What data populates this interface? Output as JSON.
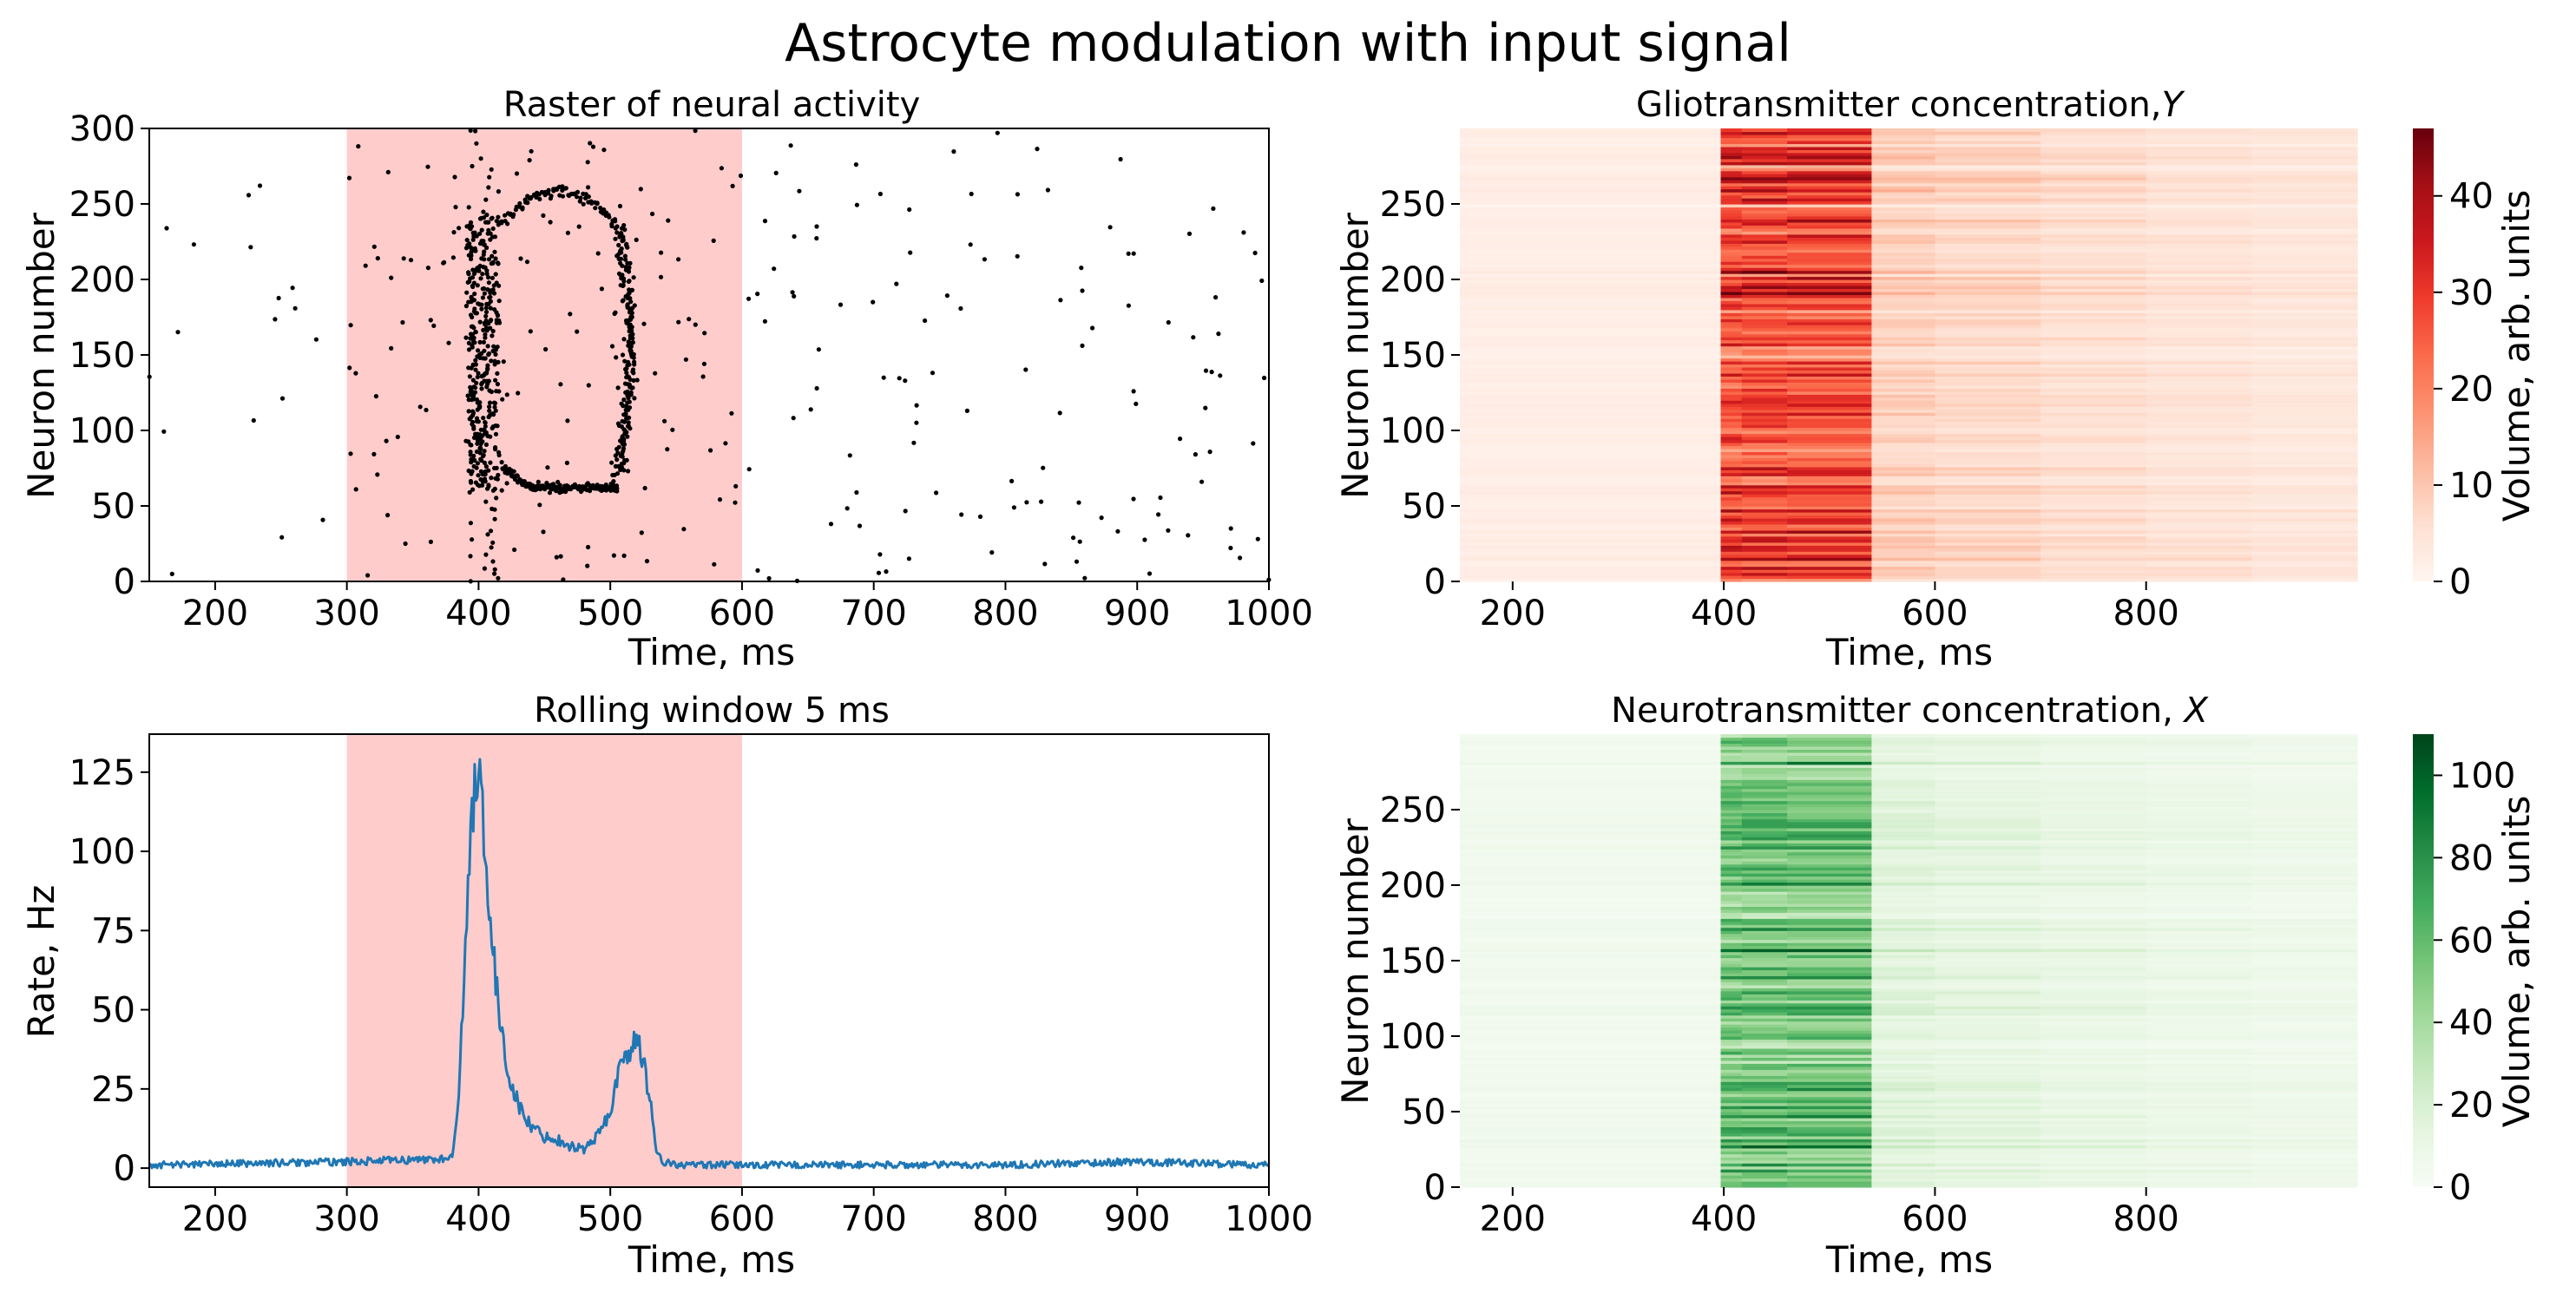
{
  "figure_title": "Astrocyte modulation with input signal",
  "colors": {
    "stimulus_band": "#ffcccc",
    "rate_line": "#1f77b4",
    "spike": "#000000",
    "reds_low": "#fff5f0",
    "reds_high": "#67000d",
    "greens_low": "#f7fcf5",
    "greens_high": "#00441b"
  },
  "chart_data": [
    {
      "id": "raster",
      "type": "scatter",
      "title": "Raster of neural activity",
      "xlabel": "Time, ms",
      "ylabel": "Neuron number",
      "xlim": [
        150,
        1000
      ],
      "ylim": [
        0,
        300
      ],
      "xticks": [
        200,
        300,
        400,
        500,
        600,
        700,
        800,
        900,
        1000
      ],
      "yticks": [
        0,
        50,
        100,
        150,
        200,
        250,
        300
      ],
      "stimulus_window": [
        300,
        600
      ],
      "background_spike_rate_hz": 1,
      "bursts": [
        {
          "t_start": 385,
          "t_end": 420,
          "neuron_min": 60,
          "neuron_max": 240,
          "note": "dense onset burst"
        },
        {
          "t_start": 420,
          "t_end": 500,
          "neuron_min": 55,
          "neuron_max": 75,
          "note": "lower arc"
        },
        {
          "t_start": 420,
          "t_end": 500,
          "neuron_min": 230,
          "neuron_max": 265,
          "note": "upper arc"
        },
        {
          "t_start": 500,
          "t_end": 525,
          "neuron_min": 75,
          "neuron_max": 230,
          "note": "second wave"
        }
      ]
    },
    {
      "id": "rate",
      "type": "line",
      "title": "Rolling window 5 ms",
      "xlabel": "Time, ms",
      "ylabel": "Rate, Hz",
      "xlim": [
        150,
        1000
      ],
      "ylim": [
        -6,
        137
      ],
      "xticks": [
        200,
        300,
        400,
        500,
        600,
        700,
        800,
        900,
        1000
      ],
      "yticks": [
        0,
        25,
        50,
        75,
        100,
        125
      ],
      "stimulus_window": [
        300,
        600
      ],
      "x": [
        150,
        300,
        380,
        385,
        390,
        395,
        398,
        402,
        406,
        410,
        415,
        420,
        430,
        440,
        450,
        460,
        470,
        480,
        490,
        495,
        500,
        505,
        510,
        515,
        520,
        525,
        530,
        535,
        540,
        550,
        600,
        700,
        800,
        900,
        1000
      ],
      "values": [
        1,
        2,
        3,
        25,
        70,
        110,
        128,
        122,
        95,
        72,
        50,
        35,
        20,
        13,
        10,
        9,
        7,
        6,
        10,
        14,
        18,
        28,
        34,
        38,
        40,
        34,
        22,
        6,
        2,
        1,
        1,
        1,
        1,
        2,
        1
      ]
    },
    {
      "id": "glio",
      "type": "heatmap",
      "title": "Gliotransmitter concentration,",
      "title_var": "Y",
      "xlabel": "Time, ms",
      "ylabel": "Neuron number",
      "xlim": [
        150,
        1000
      ],
      "ylim": [
        0,
        300
      ],
      "xticks": [
        200,
        400,
        600,
        800
      ],
      "yticks": [
        0,
        50,
        100,
        150,
        200,
        250
      ],
      "colormap": "Reds",
      "colorbar_label": "Volume, arb. units",
      "colorbar_range": [
        0,
        47
      ],
      "colorbar_ticks": [
        0,
        10,
        20,
        30,
        40
      ],
      "rise_time": 397,
      "plateau_end": 540,
      "baseline": 2,
      "peak_mean": 28,
      "tail_mean": 9
    },
    {
      "id": "neuro",
      "type": "heatmap",
      "title": "Neurotransmitter concentration,",
      "title_var": "X",
      "xlabel": "Time, ms",
      "ylabel": "Neuron number",
      "xlim": [
        150,
        1000
      ],
      "ylim": [
        0,
        300
      ],
      "xticks": [
        200,
        400,
        600,
        800
      ],
      "yticks": [
        0,
        50,
        100,
        150,
        200,
        250
      ],
      "colormap": "Greens",
      "colorbar_label": "Volume, arb. units",
      "colorbar_range": [
        0,
        110
      ],
      "colorbar_ticks": [
        0,
        20,
        40,
        60,
        80,
        100
      ],
      "rise_time": 397,
      "plateau_end": 540,
      "baseline": 5,
      "peak_mean": 55,
      "tail_mean": 16
    }
  ]
}
